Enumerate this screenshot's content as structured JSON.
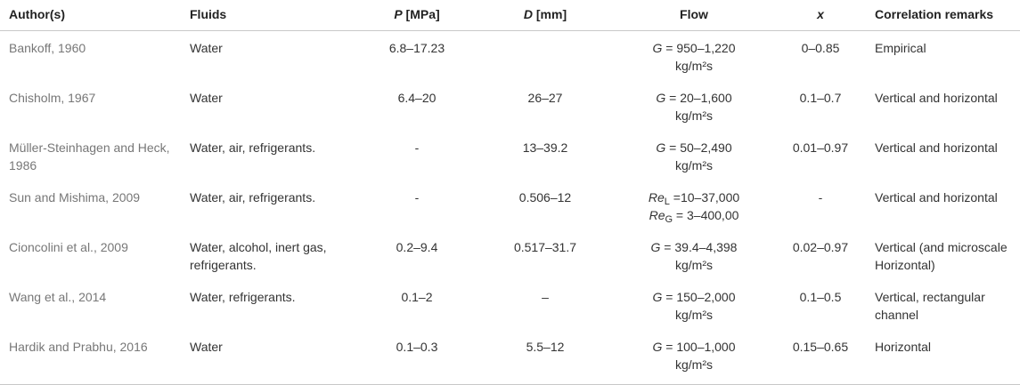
{
  "headers": {
    "author": "Author(s)",
    "fluids": "Fluids",
    "p_sym": "P",
    "p_unit": " [MPa]",
    "d_sym": "D",
    "d_unit": " [mm]",
    "flow": "Flow",
    "x": "x",
    "remarks": "Correlation remarks"
  },
  "rows": [
    {
      "author": "Bankoff, 1960",
      "fluids": "Water",
      "p": "6.8–17.23",
      "d": "",
      "g_sym": "G",
      "flow1": " = 950–1,220",
      "flow2": "kg/m²s",
      "x": "0–0.85",
      "remarks": "Empirical"
    },
    {
      "author": "Chisholm, 1967",
      "fluids": "Water",
      "p": "6.4–20",
      "d": "26–27",
      "g_sym": "G",
      "flow1": " = 20–1,600",
      "flow2": "kg/m²s",
      "x": "0.1–0.7",
      "remarks": "Vertical and horizontal"
    },
    {
      "author": "Müller-Steinhagen and Heck, 1986",
      "fluids": "Water, air, refrigerants.",
      "p": "-",
      "d": "13–39.2",
      "g_sym": "G",
      "flow1": " = 50–2,490",
      "flow2": "kg/m²s",
      "x": "0.01–0.97",
      "remarks": "Vertical and horizontal"
    },
    {
      "author": "Sun and Mishima, 2009",
      "fluids": "Water, air, refrigerants.",
      "p": "-",
      "d": "0.506–12",
      "re_sym": "Re",
      "re_l_sub": "L",
      "re_l_val": " =10–37,000",
      "re_g_sub": "G",
      "re_g_val": " = 3–400,00",
      "x": "-",
      "remarks": "Vertical and horizontal"
    },
    {
      "author": "Cioncolini et al., 2009",
      "fluids": "Water, alcohol, inert gas, refrigerants.",
      "p": "0.2–9.4",
      "d": "0.517–31.7",
      "g_sym": "G",
      "flow1": "  = 39.4–4,398",
      "flow2": "kg/m²s",
      "x": "0.02–0.97",
      "remarks": "Vertical (and microscale Horizontal)"
    },
    {
      "author": "Wang et al., 2014",
      "fluids": "Water, refrigerants.",
      "p": "0.1–2",
      "d": "–",
      "g_sym": "G",
      "flow1": " = 150–2,000",
      "flow2": "kg/m²s",
      "x": "0.1–0.5",
      "remarks": "Vertical, rectangular channel"
    },
    {
      "author": "Hardik and Prabhu, 2016",
      "fluids": "Water",
      "p": "0.1–0.3",
      "d": "5.5–12",
      "g_sym": "G",
      "flow1": " = 100–1,000",
      "flow2": "kg/m²s",
      "x": "0.15–0.65",
      "remarks": "Horizontal"
    }
  ]
}
